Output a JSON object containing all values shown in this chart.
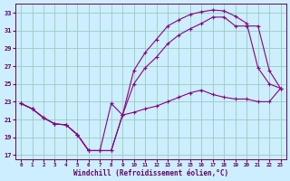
{
  "xlabel": "Windchill (Refroidissement éolien,°C)",
  "bg_color": "#cceeff",
  "grid_color": "#aaddcc",
  "line_color": "#880088",
  "xlim": [
    -0.5,
    23.5
  ],
  "ylim": [
    16.5,
    34.0
  ],
  "xtick_vals": [
    0,
    1,
    2,
    3,
    4,
    5,
    6,
    7,
    8,
    9,
    10,
    11,
    12,
    13,
    14,
    15,
    16,
    17,
    18,
    19,
    20,
    21,
    22,
    23
  ],
  "ytick_vals": [
    17,
    19,
    21,
    23,
    25,
    27,
    29,
    31,
    33
  ],
  "line1_x": [
    0,
    1,
    2,
    3,
    4,
    5,
    6,
    7,
    8,
    9,
    10,
    11,
    12,
    13,
    14,
    15,
    16,
    17,
    18,
    19,
    20,
    21,
    22,
    23
  ],
  "line1_y": [
    22.8,
    22.2,
    21.2,
    20.5,
    20.4,
    19.3,
    17.5,
    17.5,
    22.8,
    21.5,
    26.5,
    28.5,
    30.0,
    31.5,
    32.2,
    32.8,
    33.1,
    33.3,
    33.2,
    32.6,
    31.8,
    26.8,
    25.0,
    24.5
  ],
  "line2_x": [
    0,
    1,
    2,
    3,
    4,
    5,
    6,
    7,
    8,
    9,
    10,
    11,
    12,
    13,
    14,
    15,
    16,
    17,
    18,
    19,
    20,
    21,
    22,
    23
  ],
  "line2_y": [
    22.8,
    22.2,
    21.2,
    20.5,
    20.4,
    19.3,
    17.5,
    17.5,
    17.5,
    21.5,
    25.0,
    26.8,
    28.0,
    29.5,
    30.5,
    31.2,
    31.8,
    32.5,
    32.5,
    31.5,
    31.5,
    31.5,
    26.5,
    24.5
  ],
  "line3_x": [
    0,
    1,
    2,
    3,
    4,
    5,
    6,
    7,
    8,
    9,
    10,
    11,
    12,
    13,
    14,
    15,
    16,
    17,
    18,
    19,
    20,
    21,
    22,
    23
  ],
  "line3_y": [
    22.8,
    22.2,
    21.2,
    20.5,
    20.4,
    19.3,
    17.5,
    17.5,
    17.5,
    21.5,
    21.8,
    22.2,
    22.5,
    23.0,
    23.5,
    24.0,
    24.3,
    23.8,
    23.5,
    23.3,
    23.3,
    23.0,
    23.0,
    24.5
  ]
}
